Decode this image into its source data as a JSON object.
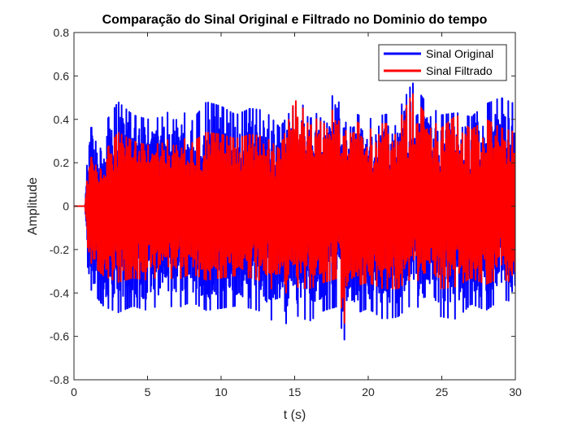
{
  "chart_data": {
    "type": "line",
    "title": "Comparação do Sinal Original e Filtrado no Dominio do tempo",
    "xlabel": "t (s)",
    "ylabel": "Amplitude",
    "xlim": [
      0,
      30
    ],
    "ylim": [
      -0.8,
      0.8
    ],
    "xticks": [
      0,
      5,
      10,
      15,
      20,
      25,
      30
    ],
    "yticks": [
      -0.8,
      -0.6,
      -0.4,
      -0.2,
      0,
      0.2,
      0.4,
      0.6,
      0.8
    ],
    "xtick_labels": [
      "0",
      "5",
      "10",
      "15",
      "20",
      "25",
      "30"
    ],
    "ytick_labels": [
      "-0.8",
      "-0.6",
      "-0.4",
      "-0.2",
      "0",
      "0.2",
      "0.4",
      "0.6",
      "0.8"
    ],
    "grid": false,
    "legend_position": "top-right",
    "signal_start": 0.75,
    "series": [
      {
        "name": "Sinal Original",
        "color": "#0000ff",
        "envelope": {
          "t": [
            0,
            0.75,
            1,
            2,
            3,
            4,
            5,
            6,
            7,
            8,
            9,
            10,
            11,
            12,
            13,
            14,
            15,
            16,
            17,
            18,
            18.3,
            19,
            20,
            21,
            22,
            23,
            24,
            25,
            26,
            27,
            28,
            29,
            30
          ],
          "max": [
            0,
            0,
            0.36,
            0.37,
            0.48,
            0.42,
            0.4,
            0.41,
            0.47,
            0.39,
            0.48,
            0.46,
            0.42,
            0.45,
            0.44,
            0.36,
            0.47,
            0.46,
            0.39,
            0.6,
            0.45,
            0.43,
            0.4,
            0.42,
            0.43,
            0.57,
            0.47,
            0.42,
            0.43,
            0.41,
            0.47,
            0.5,
            0.47
          ],
          "min": [
            0,
            0,
            -0.37,
            -0.46,
            -0.49,
            -0.46,
            -0.48,
            -0.45,
            -0.47,
            -0.44,
            -0.48,
            -0.47,
            -0.46,
            -0.47,
            -0.49,
            -0.57,
            -0.5,
            -0.53,
            -0.48,
            -0.46,
            -0.63,
            -0.5,
            -0.47,
            -0.52,
            -0.51,
            -0.45,
            -0.49,
            -0.51,
            -0.52,
            -0.45,
            -0.48,
            -0.43,
            -0.44
          ]
        }
      },
      {
        "name": "Sinal Filtrado",
        "color": "#ff0000",
        "envelope": {
          "t": [
            0,
            0.75,
            1,
            2,
            3,
            4,
            5,
            6,
            7,
            8,
            9,
            10,
            11,
            12,
            13,
            14,
            15,
            16,
            17,
            18,
            18.3,
            19,
            20,
            21,
            22,
            23,
            24,
            25,
            26,
            27,
            28,
            29,
            30
          ],
          "max": [
            0,
            0,
            0.22,
            0.24,
            0.34,
            0.3,
            0.28,
            0.29,
            0.33,
            0.29,
            0.34,
            0.33,
            0.31,
            0.33,
            0.32,
            0.26,
            0.49,
            0.42,
            0.38,
            0.49,
            0.4,
            0.4,
            0.35,
            0.38,
            0.38,
            0.52,
            0.41,
            0.36,
            0.42,
            0.35,
            0.4,
            0.36,
            0.34
          ],
          "min": [
            0,
            0,
            -0.25,
            -0.32,
            -0.35,
            -0.33,
            -0.34,
            -0.32,
            -0.34,
            -0.31,
            -0.34,
            -0.33,
            -0.32,
            -0.33,
            -0.35,
            -0.42,
            -0.37,
            -0.38,
            -0.35,
            -0.33,
            -0.56,
            -0.37,
            -0.35,
            -0.38,
            -0.38,
            -0.33,
            -0.36,
            -0.38,
            -0.37,
            -0.33,
            -0.36,
            -0.33,
            -0.36
          ]
        }
      }
    ]
  }
}
